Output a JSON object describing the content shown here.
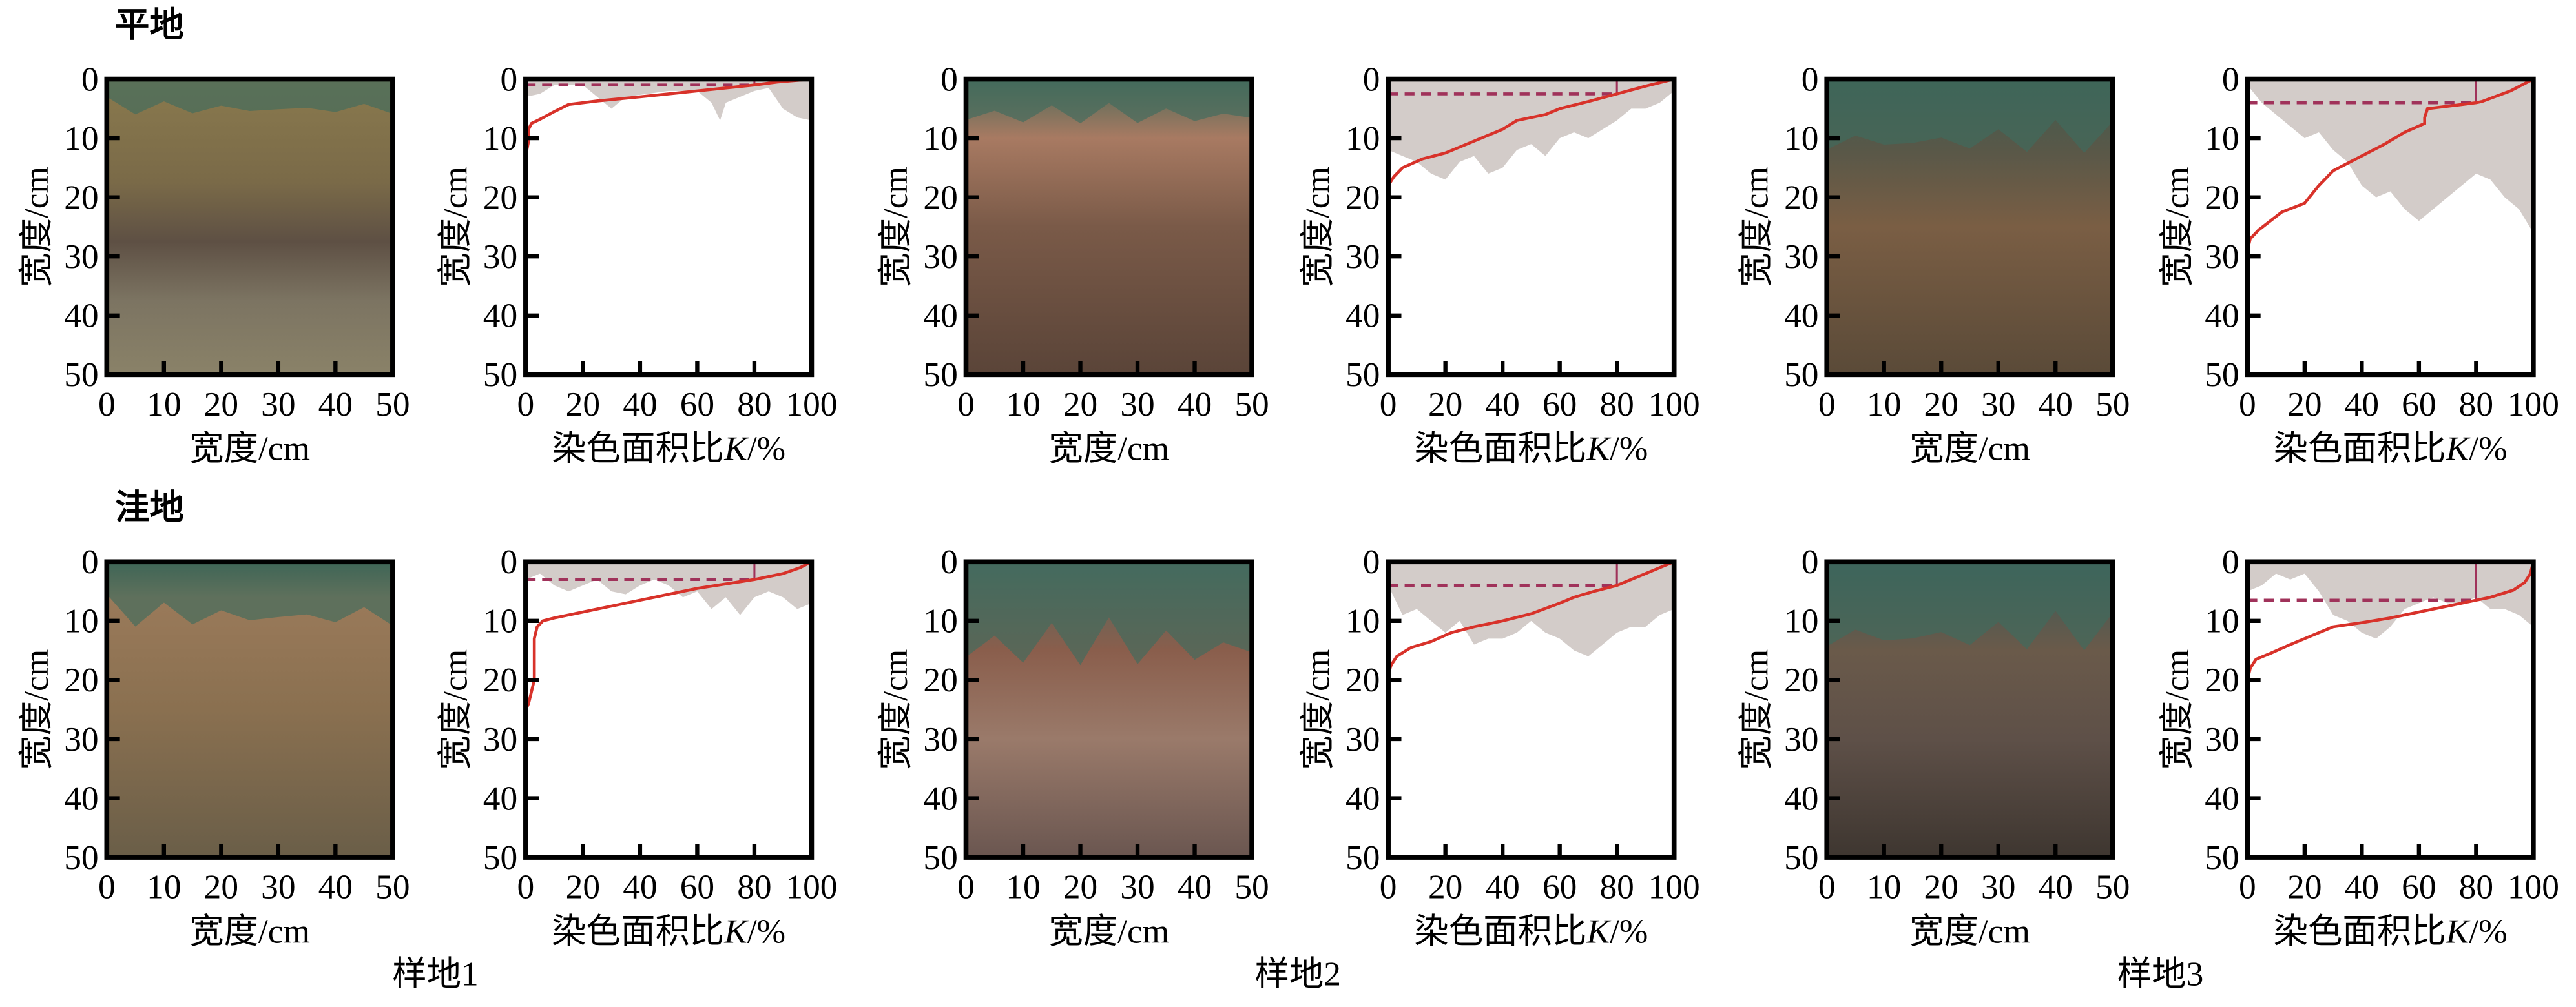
{
  "rows": [
    {
      "label": "平地"
    },
    {
      "label": "洼地"
    }
  ],
  "site_labels": [
    "样地1",
    "样地2",
    "样地3"
  ],
  "photo_axes": {
    "xlabel": "宽度/cm",
    "ylabel": "宽度/cm",
    "xticks": [
      "0",
      "10",
      "20",
      "30",
      "40",
      "50"
    ],
    "yticks": [
      "0",
      "10",
      "20",
      "30",
      "40",
      "50"
    ]
  },
  "chart_axes": {
    "xlabel": "染色面积比",
    "xlabel_var": "K",
    "xlabel_unit": "/%",
    "ylabel": "宽度/cm",
    "xticks": [
      "0",
      "20",
      "40",
      "60",
      "80",
      "100"
    ],
    "yticks": [
      "0",
      "10",
      "20",
      "30",
      "40",
      "50"
    ]
  },
  "colors": {
    "curve": "#d8322a",
    "dashed": "#a0325a",
    "stain": "#d3ccc9"
  },
  "chart_data": [
    {
      "type": "line",
      "row": "平地",
      "site": "样地1",
      "xlim": [
        0,
        100
      ],
      "ylim": [
        50,
        0
      ],
      "threshold_K": 80,
      "threshold_depth": 1,
      "curve": [
        [
          100,
          0
        ],
        [
          88,
          0.5
        ],
        [
          80,
          1
        ],
        [
          60,
          2
        ],
        [
          40,
          3
        ],
        [
          25,
          3.7
        ],
        [
          15,
          4.3
        ],
        [
          10,
          5.5
        ],
        [
          5,
          6.8
        ],
        [
          2,
          7.5
        ],
        [
          1,
          8.5
        ],
        [
          1,
          10.5
        ],
        [
          0,
          13
        ]
      ],
      "stain_profile": [
        [
          0,
          3
        ],
        [
          5,
          2.5
        ],
        [
          10,
          1
        ],
        [
          20,
          1
        ],
        [
          25,
          3
        ],
        [
          30,
          5
        ],
        [
          35,
          3
        ],
        [
          50,
          2
        ],
        [
          60,
          2
        ],
        [
          65,
          4
        ],
        [
          68,
          7
        ],
        [
          70,
          4
        ],
        [
          75,
          3
        ],
        [
          80,
          2
        ],
        [
          85,
          1.5
        ],
        [
          90,
          5
        ],
        [
          95,
          6.5
        ],
        [
          100,
          7
        ]
      ]
    },
    {
      "type": "line",
      "row": "平地",
      "site": "样地2",
      "xlim": [
        0,
        100
      ],
      "ylim": [
        50,
        0
      ],
      "threshold_K": 80,
      "threshold_depth": 2.5,
      "curve": [
        [
          100,
          0
        ],
        [
          90,
          1.2
        ],
        [
          80,
          2.5
        ],
        [
          70,
          3.8
        ],
        [
          60,
          5
        ],
        [
          55,
          6
        ],
        [
          45,
          7
        ],
        [
          40,
          8.5
        ],
        [
          30,
          10.5
        ],
        [
          20,
          12.5
        ],
        [
          12,
          13.5
        ],
        [
          5,
          15
        ],
        [
          2,
          16.5
        ],
        [
          0,
          18
        ]
      ],
      "stain_profile": [
        [
          0,
          12
        ],
        [
          5,
          13
        ],
        [
          10,
          14
        ],
        [
          15,
          16
        ],
        [
          20,
          17
        ],
        [
          25,
          14
        ],
        [
          30,
          13
        ],
        [
          35,
          16
        ],
        [
          40,
          15
        ],
        [
          45,
          12
        ],
        [
          50,
          11
        ],
        [
          55,
          13
        ],
        [
          60,
          10
        ],
        [
          65,
          9
        ],
        [
          70,
          10
        ],
        [
          80,
          7
        ],
        [
          85,
          5
        ],
        [
          90,
          5
        ],
        [
          95,
          4
        ],
        [
          100,
          2
        ]
      ]
    },
    {
      "type": "line",
      "row": "平地",
      "site": "样地3",
      "xlim": [
        0,
        100
      ],
      "ylim": [
        50,
        0
      ],
      "threshold_K": 80,
      "threshold_depth": 4,
      "curve": [
        [
          100,
          0
        ],
        [
          92,
          2
        ],
        [
          82,
          3.8
        ],
        [
          80,
          4
        ],
        [
          63,
          5
        ],
        [
          62,
          6.5
        ],
        [
          62,
          7.5
        ],
        [
          55,
          9
        ],
        [
          48,
          11
        ],
        [
          40,
          13
        ],
        [
          30,
          15.5
        ],
        [
          25,
          18
        ],
        [
          20,
          21
        ],
        [
          12,
          22.5
        ],
        [
          8,
          24
        ],
        [
          4,
          25.5
        ],
        [
          1,
          27
        ],
        [
          0,
          29
        ]
      ],
      "stain_profile": [
        [
          0,
          1
        ],
        [
          5,
          4
        ],
        [
          10,
          6
        ],
        [
          15,
          8
        ],
        [
          20,
          10
        ],
        [
          25,
          9
        ],
        [
          30,
          12
        ],
        [
          35,
          14
        ],
        [
          40,
          18
        ],
        [
          45,
          20
        ],
        [
          50,
          19
        ],
        [
          55,
          22
        ],
        [
          60,
          24
        ],
        [
          65,
          22
        ],
        [
          70,
          20
        ],
        [
          75,
          18
        ],
        [
          80,
          16
        ],
        [
          85,
          17
        ],
        [
          90,
          20
        ],
        [
          95,
          22
        ],
        [
          100,
          26
        ]
      ]
    },
    {
      "type": "line",
      "row": "洼地",
      "site": "样地1",
      "xlim": [
        0,
        100
      ],
      "ylim": [
        50,
        0
      ],
      "threshold_K": 80,
      "threshold_depth": 3,
      "curve": [
        [
          100,
          0
        ],
        [
          96,
          1
        ],
        [
          90,
          2
        ],
        [
          80,
          3
        ],
        [
          60,
          4.5
        ],
        [
          40,
          6.5
        ],
        [
          20,
          8.5
        ],
        [
          10,
          9.5
        ],
        [
          6,
          10
        ],
        [
          4,
          11
        ],
        [
          3,
          13
        ],
        [
          3,
          20
        ],
        [
          2,
          22
        ],
        [
          1,
          24
        ],
        [
          0,
          25
        ]
      ],
      "stain_profile": [
        [
          0,
          3
        ],
        [
          5,
          2
        ],
        [
          10,
          4
        ],
        [
          15,
          5
        ],
        [
          20,
          4
        ],
        [
          25,
          3
        ],
        [
          30,
          5
        ],
        [
          35,
          5.5
        ],
        [
          40,
          4
        ],
        [
          45,
          3
        ],
        [
          50,
          4
        ],
        [
          55,
          6
        ],
        [
          60,
          5
        ],
        [
          65,
          8
        ],
        [
          70,
          6
        ],
        [
          75,
          9
        ],
        [
          80,
          6
        ],
        [
          85,
          5
        ],
        [
          90,
          6
        ],
        [
          95,
          8
        ],
        [
          100,
          7
        ]
      ]
    },
    {
      "type": "line",
      "row": "洼地",
      "site": "样地2",
      "xlim": [
        0,
        100
      ],
      "ylim": [
        50,
        0
      ],
      "threshold_K": 80,
      "threshold_depth": 4,
      "curve": [
        [
          100,
          0
        ],
        [
          95,
          1
        ],
        [
          90,
          2
        ],
        [
          85,
          3
        ],
        [
          80,
          4
        ],
        [
          72,
          5
        ],
        [
          65,
          6
        ],
        [
          60,
          7
        ],
        [
          50,
          8.8
        ],
        [
          40,
          10
        ],
        [
          30,
          11
        ],
        [
          22,
          12
        ],
        [
          15,
          13.5
        ],
        [
          8,
          14.5
        ],
        [
          3,
          16
        ],
        [
          1,
          17.5
        ],
        [
          0,
          19
        ]
      ],
      "stain_profile": [
        [
          0,
          4
        ],
        [
          5,
          9
        ],
        [
          10,
          8
        ],
        [
          15,
          10
        ],
        [
          20,
          12
        ],
        [
          25,
          10
        ],
        [
          30,
          14
        ],
        [
          35,
          13
        ],
        [
          40,
          13
        ],
        [
          45,
          12
        ],
        [
          50,
          10
        ],
        [
          55,
          12
        ],
        [
          60,
          13
        ],
        [
          65,
          15
        ],
        [
          70,
          16
        ],
        [
          75,
          14
        ],
        [
          80,
          12
        ],
        [
          85,
          11
        ],
        [
          90,
          11
        ],
        [
          95,
          9
        ],
        [
          100,
          8
        ]
      ]
    },
    {
      "type": "line",
      "row": "洼地",
      "site": "样地3",
      "xlim": [
        0,
        100
      ],
      "ylim": [
        50,
        0
      ],
      "threshold_K": 80,
      "threshold_depth": 6.5,
      "curve": [
        [
          100,
          0
        ],
        [
          99,
          2
        ],
        [
          97,
          3.5
        ],
        [
          93,
          4.8
        ],
        [
          85,
          6
        ],
        [
          80,
          6.5
        ],
        [
          70,
          7.5
        ],
        [
          60,
          8.5
        ],
        [
          50,
          9.5
        ],
        [
          40,
          10.3
        ],
        [
          30,
          11
        ],
        [
          25,
          12
        ],
        [
          20,
          13
        ],
        [
          15,
          14
        ],
        [
          8,
          15.5
        ],
        [
          3,
          16.5
        ],
        [
          1,
          18
        ],
        [
          0,
          20
        ]
      ],
      "stain_profile": [
        [
          0,
          5
        ],
        [
          5,
          4
        ],
        [
          10,
          2
        ],
        [
          15,
          3
        ],
        [
          20,
          2
        ],
        [
          25,
          5
        ],
        [
          30,
          9
        ],
        [
          35,
          10
        ],
        [
          40,
          12
        ],
        [
          45,
          13
        ],
        [
          50,
          11
        ],
        [
          55,
          8
        ],
        [
          60,
          7
        ],
        [
          65,
          6
        ],
        [
          70,
          7
        ],
        [
          75,
          7
        ],
        [
          80,
          6
        ],
        [
          85,
          8
        ],
        [
          90,
          8
        ],
        [
          95,
          9
        ],
        [
          100,
          11
        ]
      ]
    }
  ]
}
